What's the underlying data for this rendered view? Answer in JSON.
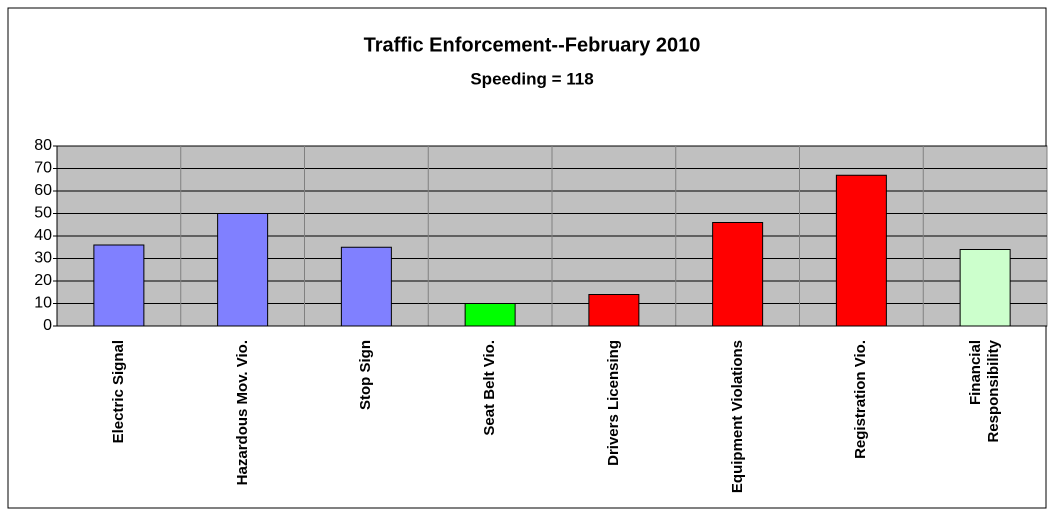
{
  "chart_data": {
    "type": "bar",
    "title": "Traffic Enforcement--February 2010",
    "subtitle": "Speeding = 118",
    "categories": [
      "Electric Signal",
      "Hazardous Mov. Vio.",
      "Stop Sign",
      "Seat Belt Vio.",
      "Drivers Licensing",
      "Equipment Violations",
      "Registration Vio.",
      "Financial Responsibility"
    ],
    "values": [
      36,
      50,
      35,
      10,
      14,
      46,
      67,
      34
    ],
    "colors": [
      "#8080ff",
      "#8080ff",
      "#8080ff",
      "#00ff00",
      "#ff0000",
      "#ff0000",
      "#ff0000",
      "#ccffcc"
    ],
    "ylim": [
      0,
      80
    ],
    "yticks": [
      0,
      10,
      20,
      30,
      40,
      50,
      60,
      70,
      80
    ],
    "grid": true
  }
}
